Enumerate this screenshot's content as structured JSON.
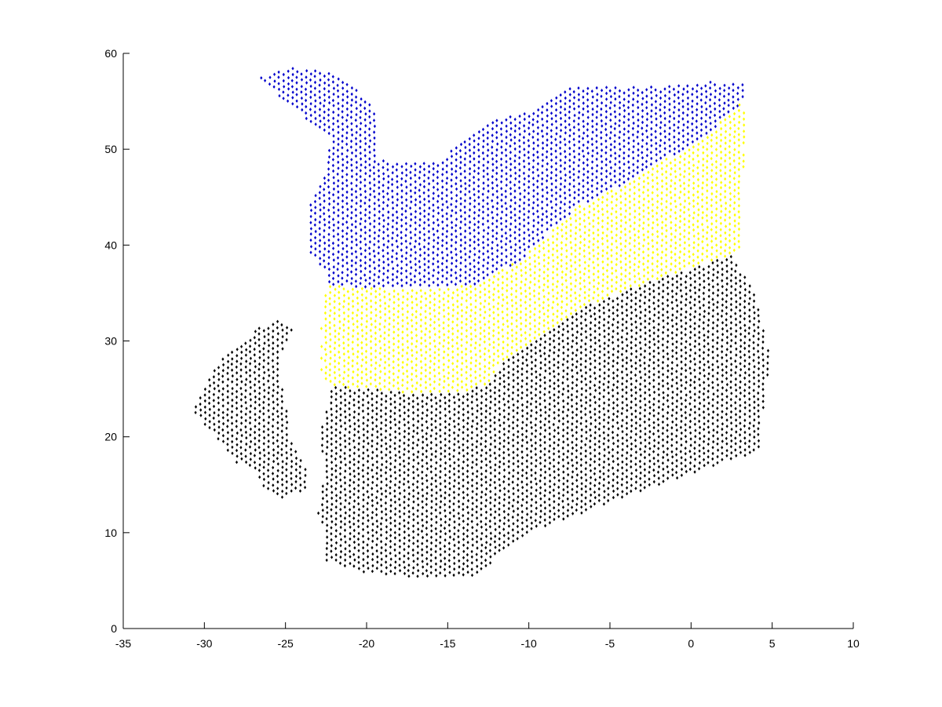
{
  "chart_data": {
    "type": "scatter",
    "title": "",
    "xlabel": "",
    "ylabel": "",
    "xlim": [
      -35,
      10
    ],
    "ylim": [
      0,
      60
    ],
    "xticks": [
      -35,
      -30,
      -25,
      -20,
      -15,
      -10,
      -5,
      0,
      5,
      10
    ],
    "yticks": [
      0,
      10,
      20,
      30,
      40,
      50,
      60
    ],
    "grid": false,
    "legend": "none",
    "marker": "diamond",
    "series": [
      {
        "color": "#0000cc",
        "regions": [
          {
            "polygon": [
              [
                -26.8,
                57.5
              ],
              [
                -24.5,
                58.5
              ],
              [
                -22,
                58
              ],
              [
                -20.5,
                56
              ],
              [
                -19.5,
                54
              ],
              [
                -19.4,
                49
              ],
              [
                -18.6,
                48.6
              ],
              [
                -17,
                48.5
              ],
              [
                -15.5,
                48.8
              ],
              [
                -14,
                51
              ],
              [
                -12,
                53
              ],
              [
                -10,
                54
              ],
              [
                -8.5,
                55.5
              ],
              [
                -7.5,
                56.5
              ],
              [
                -2,
                56.5
              ],
              [
                1,
                57
              ],
              [
                3.2,
                57
              ],
              [
                3.2,
                55
              ],
              [
                1,
                51.5
              ],
              [
                -1,
                49.5
              ],
              [
                -4,
                46.5
              ],
              [
                -7,
                44
              ],
              [
                -10.5,
                38.5
              ],
              [
                -13,
                36
              ],
              [
                -16,
                35.4
              ],
              [
                -19,
                35.5
              ],
              [
                -22.5,
                35.8
              ],
              [
                -22.6,
                37.5
              ],
              [
                -23.5,
                39
              ],
              [
                -23.5,
                44.5
              ],
              [
                -22.5,
                47.5
              ],
              [
                -22.2,
                51
              ],
              [
                -24,
                53.5
              ],
              [
                -25,
                55
              ],
              [
                -26.8,
                57.5
              ]
            ]
          }
        ]
      },
      {
        "color": "#ffff00",
        "regions": [
          {
            "polygon": [
              [
                -22.8,
                32.5
              ],
              [
                -22.5,
                35.8
              ],
              [
                -19,
                35.5
              ],
              [
                -16,
                35.4
              ],
              [
                -13,
                36
              ],
              [
                -10.5,
                38.5
              ],
              [
                -7,
                44
              ],
              [
                -4,
                46.5
              ],
              [
                -1,
                49.5
              ],
              [
                1,
                51.5
              ],
              [
                3.2,
                55
              ],
              [
                3.3,
                53
              ],
              [
                3.1,
                40
              ],
              [
                2.5,
                39
              ],
              [
                -2,
                36.5
              ],
              [
                -6,
                34
              ],
              [
                -9,
                31
              ],
              [
                -11.5,
                28
              ],
              [
                -12.5,
                25.5
              ],
              [
                -14,
                24.7
              ],
              [
                -17,
                24.5
              ],
              [
                -20,
                25
              ],
              [
                -22.3,
                25.3
              ],
              [
                -22.8,
                26.5
              ],
              [
                -22.8,
                32.5
              ]
            ]
          }
        ]
      },
      {
        "color": "#000000",
        "regions": [
          {
            "polygon": [
              [
                -22.3,
                25.3
              ],
              [
                -20,
                25
              ],
              [
                -17,
                24.5
              ],
              [
                -14,
                24.7
              ],
              [
                -12.5,
                25.5
              ],
              [
                -11.5,
                28
              ],
              [
                -9,
                31
              ],
              [
                -6,
                34
              ],
              [
                -2,
                36.5
              ],
              [
                2.5,
                39
              ],
              [
                3,
                37.5
              ],
              [
                3.8,
                35.5
              ],
              [
                4.5,
                31
              ],
              [
                5,
                28
              ],
              [
                4.5,
                24
              ],
              [
                4.3,
                18.5
              ],
              [
                1.5,
                17
              ],
              [
                -2,
                15
              ],
              [
                -6,
                12.5
              ],
              [
                -10,
                10
              ],
              [
                -12,
                7.5
              ],
              [
                -13,
                5.5
              ],
              [
                -15,
                5.2
              ],
              [
                -17,
                5.4
              ],
              [
                -20,
                5.8
              ],
              [
                -22.5,
                7
              ],
              [
                -22.5,
                10
              ],
              [
                -23,
                12
              ],
              [
                -22.5,
                17
              ],
              [
                -23,
                20
              ],
              [
                -22.5,
                22.5
              ],
              [
                -22.3,
                25.3
              ]
            ]
          },
          {
            "polygon": [
              [
                -30.8,
                22.7
              ],
              [
                -29.8,
                26
              ],
              [
                -29,
                28
              ],
              [
                -27.8,
                29.8
              ],
              [
                -26.5,
                31.5
              ],
              [
                -25.5,
                32.5
              ],
              [
                -24.5,
                31.5
              ],
              [
                -25.5,
                27.5
              ],
              [
                -25,
                24
              ],
              [
                -24.8,
                21
              ],
              [
                -24.5,
                19
              ],
              [
                -23.5,
                16
              ],
              [
                -23.8,
                14.5
              ],
              [
                -25,
                13.5
              ],
              [
                -26,
                14
              ],
              [
                -27,
                16.5
              ],
              [
                -28.2,
                17.5
              ],
              [
                -28.8,
                19
              ],
              [
                -29.5,
                20.5
              ],
              [
                -30.8,
                22.7
              ]
            ]
          }
        ]
      }
    ]
  }
}
